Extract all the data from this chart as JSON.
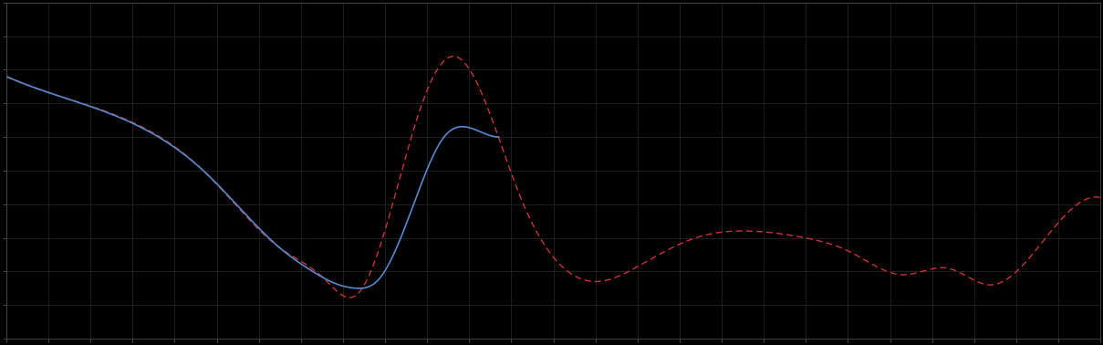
{
  "background_color": "#000000",
  "plot_bg_color": "#000000",
  "grid_color": "#2a2a2a",
  "line1_color": "#5588CC",
  "line2_color": "#CC3333",
  "figsize": [
    12.09,
    3.78
  ],
  "dpi": 100,
  "xlim": [
    0,
    100
  ],
  "ylim": [
    0,
    1
  ],
  "n_xgrid": 27,
  "n_ygrid": 11,
  "red_keypoints_x": [
    0,
    5,
    18,
    25,
    29,
    32,
    38,
    41,
    47,
    54,
    58,
    63,
    68,
    73,
    77,
    82,
    86,
    90,
    95,
    100
  ],
  "red_keypoints_y": [
    0.78,
    0.72,
    0.5,
    0.27,
    0.18,
    0.13,
    0.7,
    0.84,
    0.42,
    0.17,
    0.22,
    0.3,
    0.32,
    0.3,
    0.26,
    0.19,
    0.21,
    0.16,
    0.3,
    0.42
  ],
  "blue_keypoints_x": [
    0,
    5,
    18,
    25,
    28,
    30,
    32,
    34,
    37,
    40,
    43,
    45
  ],
  "blue_keypoints_y": [
    0.78,
    0.72,
    0.5,
    0.27,
    0.2,
    0.165,
    0.15,
    0.175,
    0.38,
    0.6,
    0.62,
    0.6
  ]
}
